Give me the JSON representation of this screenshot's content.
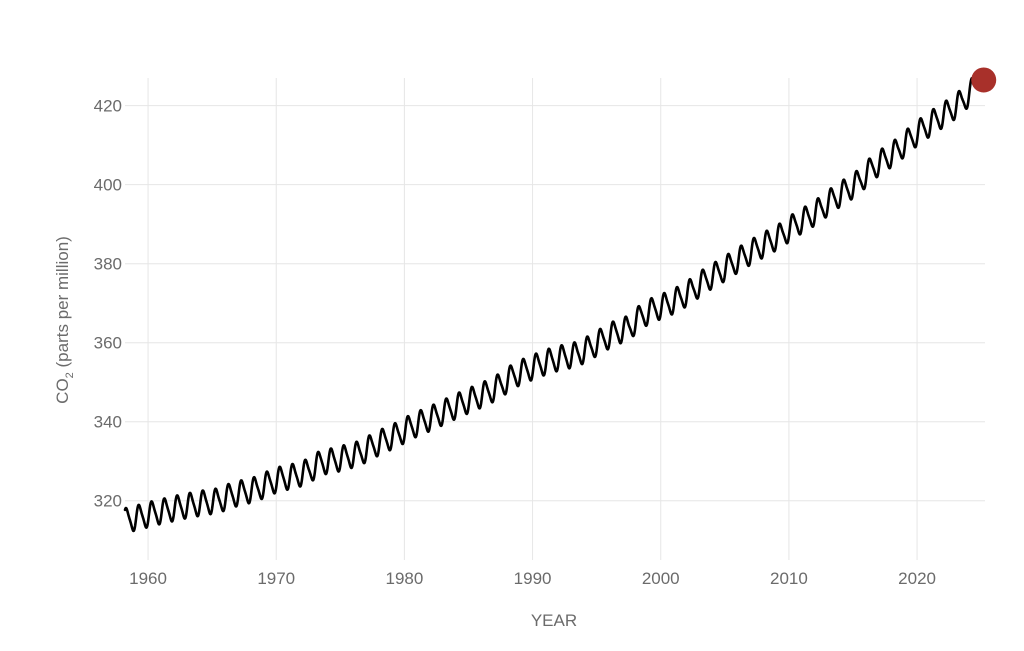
{
  "chart_data": {
    "type": "line",
    "title": "",
    "xlabel": "YEAR",
    "ylabel": {
      "prefix": "CO",
      "subscript": "2",
      "suffix": " (parts per million)"
    },
    "xlim": [
      1958.2,
      2025.3
    ],
    "ylim": [
      305,
      427
    ],
    "x_ticks": [
      1960,
      1970,
      1980,
      1990,
      2000,
      2010,
      2020
    ],
    "x_tick_labels": [
      "1960",
      "1970",
      "1980",
      "1990",
      "2000",
      "2010",
      "2020"
    ],
    "y_ticks": [
      320,
      340,
      360,
      380,
      400,
      420
    ],
    "y_tick_labels": [
      "320",
      "340",
      "360",
      "380",
      "400",
      "420"
    ],
    "grid": true,
    "legend": "none",
    "colors": {
      "line": "#000000",
      "marker": "#a8302a",
      "grid": "#e6e6e6",
      "text": "#6b6b6b"
    },
    "series": [
      {
        "annual_mean": {
          "x": [
            1958,
            1959,
            1960,
            1961,
            1962,
            1963,
            1964,
            1965,
            1966,
            1967,
            1968,
            1969,
            1970,
            1971,
            1972,
            1973,
            1974,
            1975,
            1976,
            1977,
            1978,
            1979,
            1980,
            1981,
            1982,
            1983,
            1984,
            1985,
            1986,
            1987,
            1988,
            1989,
            1990,
            1991,
            1992,
            1993,
            1994,
            1995,
            1996,
            1997,
            1998,
            1999,
            2000,
            2001,
            2002,
            2003,
            2004,
            2005,
            2006,
            2007,
            2008,
            2009,
            2010,
            2011,
            2012,
            2013,
            2014,
            2015,
            2016,
            2017,
            2018,
            2019,
            2020,
            2021,
            2022,
            2023,
            2024
          ],
          "y": [
            315.2,
            316.0,
            316.9,
            317.6,
            318.4,
            319.0,
            319.6,
            320.0,
            321.4,
            322.2,
            323.0,
            324.6,
            325.7,
            326.3,
            327.5,
            329.7,
            330.2,
            331.1,
            332.0,
            333.8,
            335.4,
            336.8,
            338.7,
            340.1,
            341.5,
            343.1,
            344.6,
            346.0,
            347.4,
            349.2,
            351.6,
            353.1,
            354.4,
            355.6,
            356.4,
            357.1,
            358.8,
            360.8,
            362.6,
            363.7,
            366.8,
            368.5,
            369.7,
            371.3,
            373.4,
            375.9,
            377.7,
            379.8,
            381.9,
            383.8,
            385.6,
            387.4,
            389.9,
            391.7,
            393.9,
            396.5,
            398.6,
            400.8,
            404.2,
            406.5,
            408.7,
            411.7,
            414.2,
            416.5,
            418.6,
            421.1,
            424.6
          ]
        },
        "seasonal_amplitude_ppm": 6.4,
        "x_range": [
          1958.2,
          2024.6
        ]
      }
    ],
    "latest_point": {
      "x": 2025.2,
      "y": 426.5
    }
  }
}
